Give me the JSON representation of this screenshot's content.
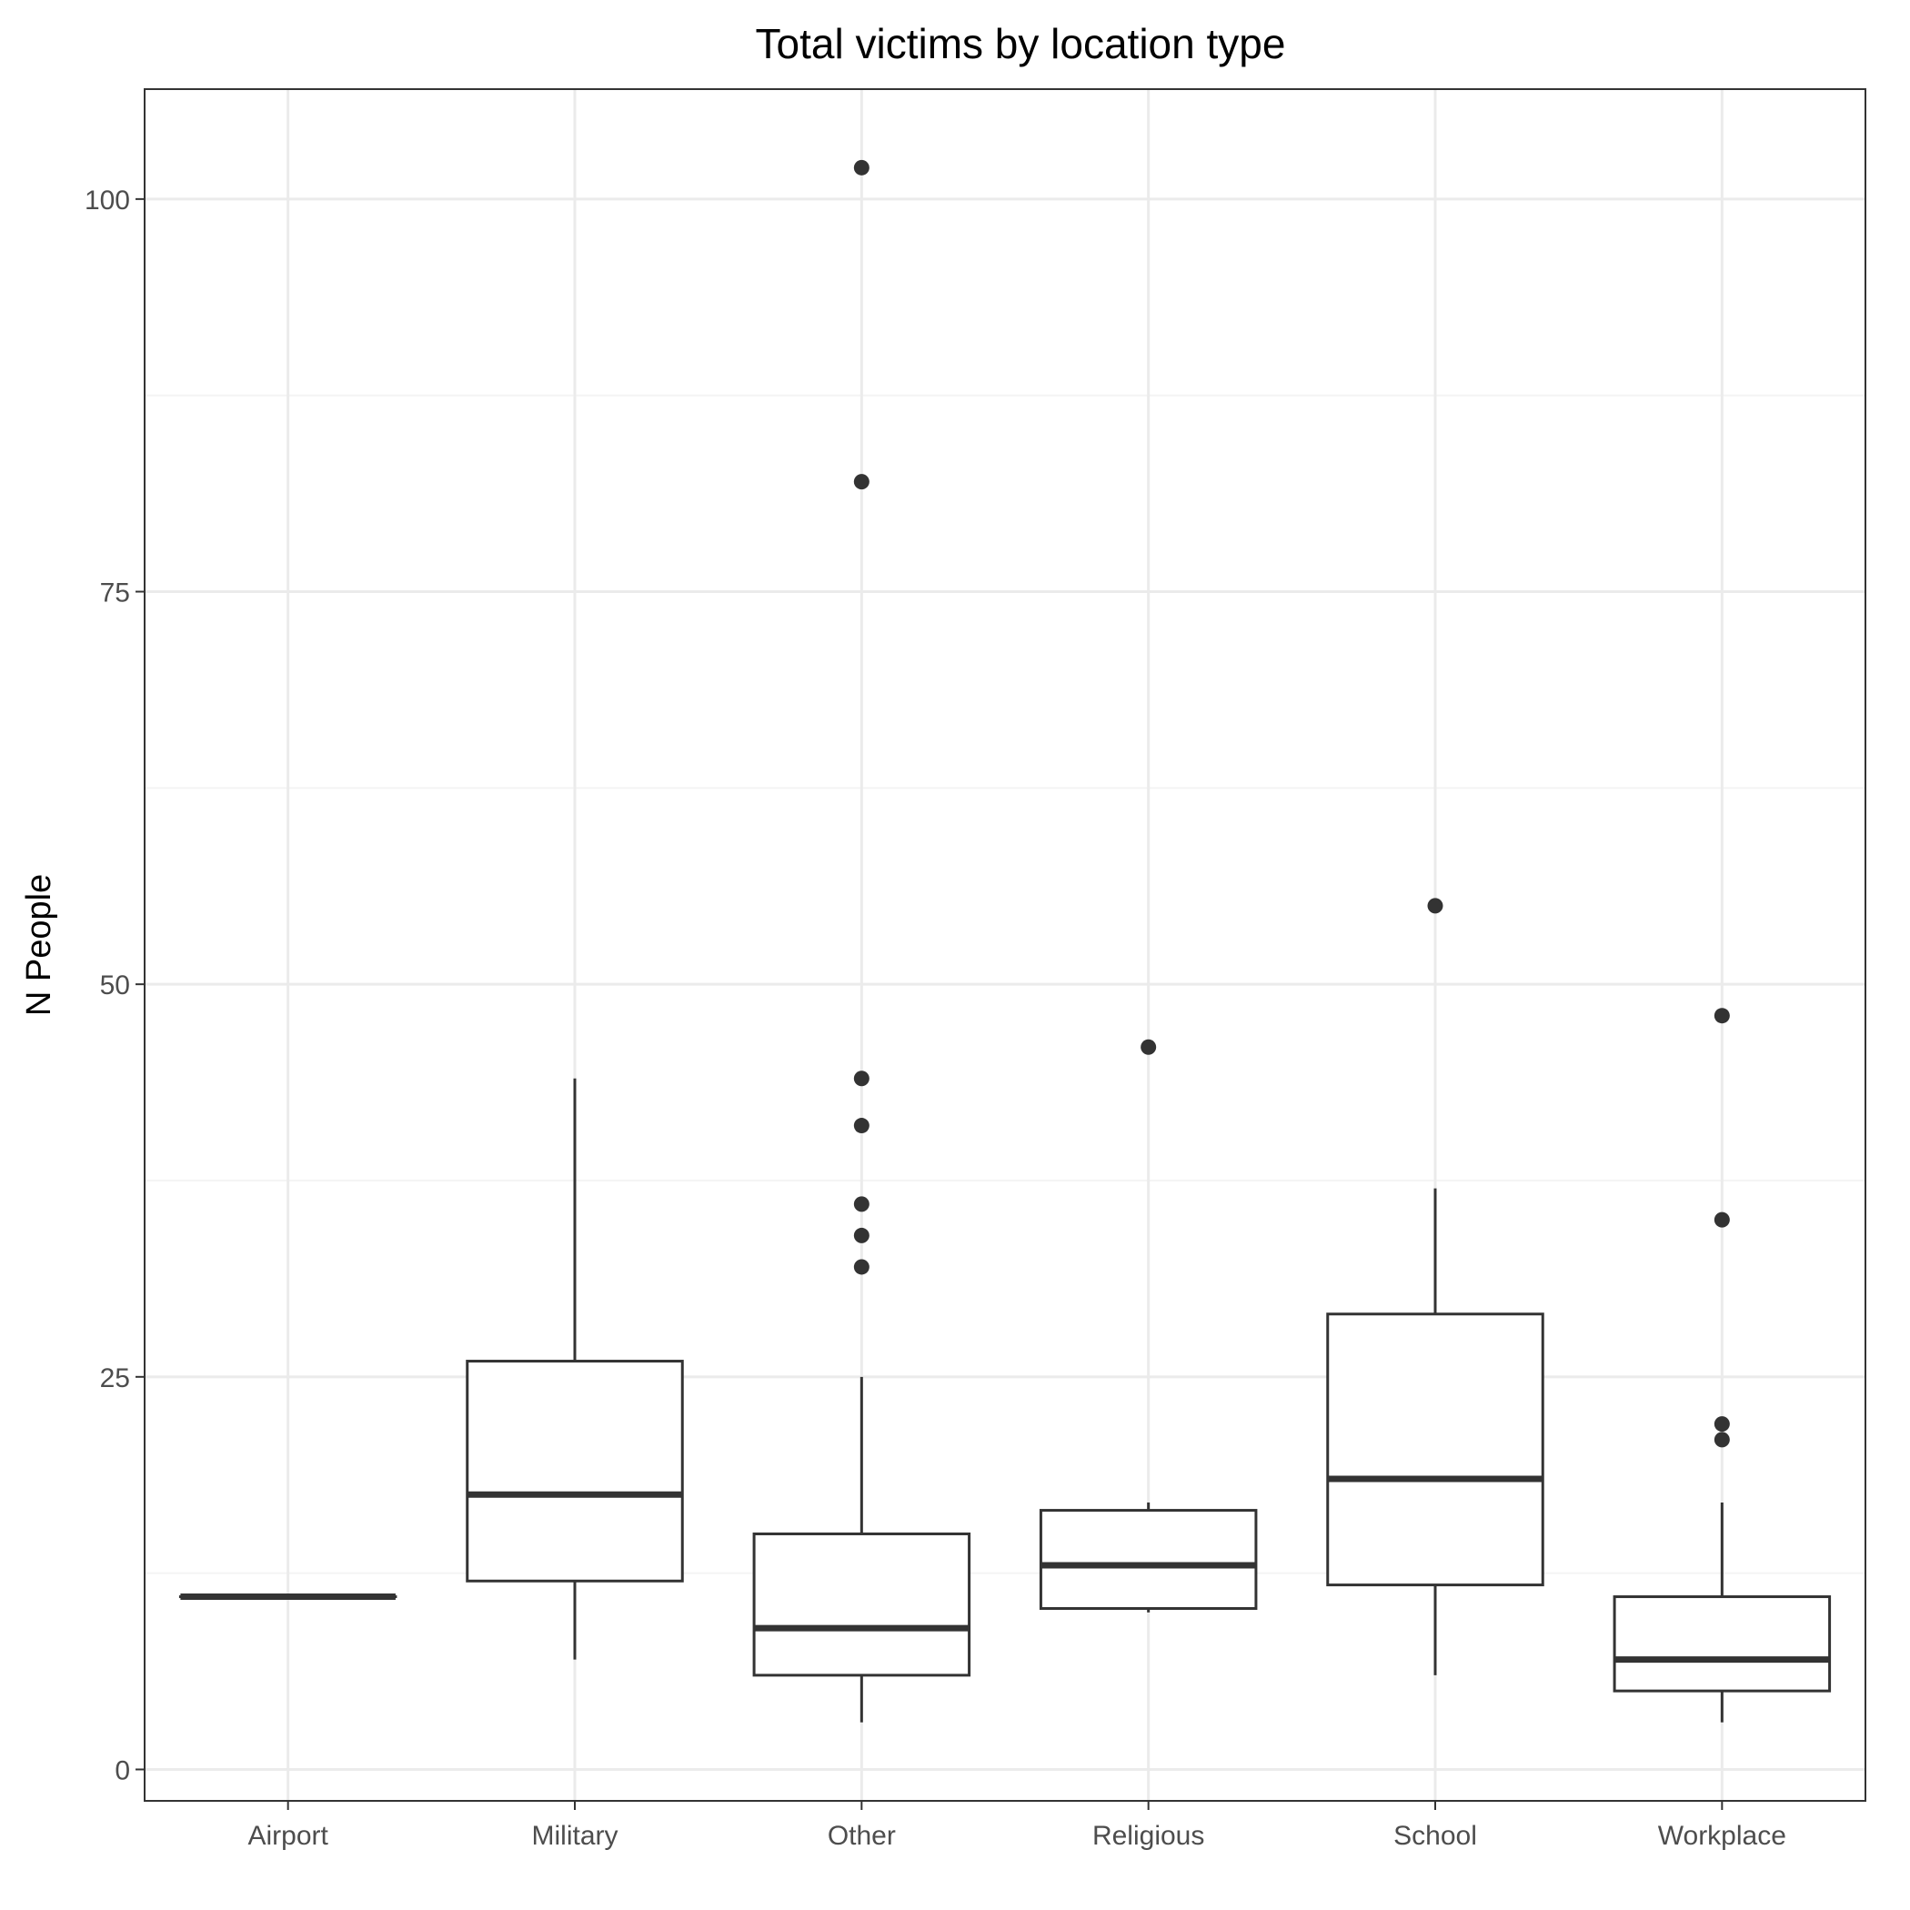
{
  "chart_data": {
    "type": "boxplot",
    "title": "Total victims by location type",
    "xlabel": "",
    "ylabel": "N People",
    "ylim": [
      -2,
      107
    ],
    "yticks": [
      0,
      25,
      50,
      75,
      100
    ],
    "y_minor_ticks": [
      12.5,
      37.5,
      62.5,
      87.5
    ],
    "categories": [
      "Airport",
      "Military",
      "Other",
      "Religious",
      "School",
      "Workplace"
    ],
    "boxes": [
      {
        "category": "Airport",
        "whisker_low": 11,
        "q1": 11,
        "median": 11,
        "q3": 11,
        "whisker_high": 11,
        "outliers": []
      },
      {
        "category": "Military",
        "whisker_low": 7,
        "q1": 12,
        "median": 17.5,
        "q3": 26,
        "whisker_high": 44,
        "outliers": []
      },
      {
        "category": "Other",
        "whisker_low": 3,
        "q1": 6,
        "median": 9,
        "q3": 15,
        "whisker_high": 25,
        "outliers": [
          32,
          34,
          36,
          41,
          44,
          82,
          102
        ]
      },
      {
        "category": "Religious",
        "whisker_low": 10,
        "q1": 10.25,
        "median": 13,
        "q3": 16.5,
        "whisker_high": 17,
        "outliers": [
          46
        ]
      },
      {
        "category": "School",
        "whisker_low": 6,
        "q1": 11.75,
        "median": 18.5,
        "q3": 29,
        "whisker_high": 37,
        "outliers": [
          55
        ]
      },
      {
        "category": "Workplace",
        "whisker_low": 3,
        "q1": 5,
        "median": 7,
        "q3": 11,
        "whisker_high": 17,
        "outliers": [
          21,
          22,
          35,
          48
        ]
      }
    ],
    "grid": true,
    "legend": "none",
    "colors": {
      "box_stroke": "#333333",
      "box_fill": "#ffffff",
      "grid_major": "#ebebeb",
      "grid_minor": "#f4f4f4",
      "panel_border": "#333333",
      "tick": "#333333"
    }
  }
}
